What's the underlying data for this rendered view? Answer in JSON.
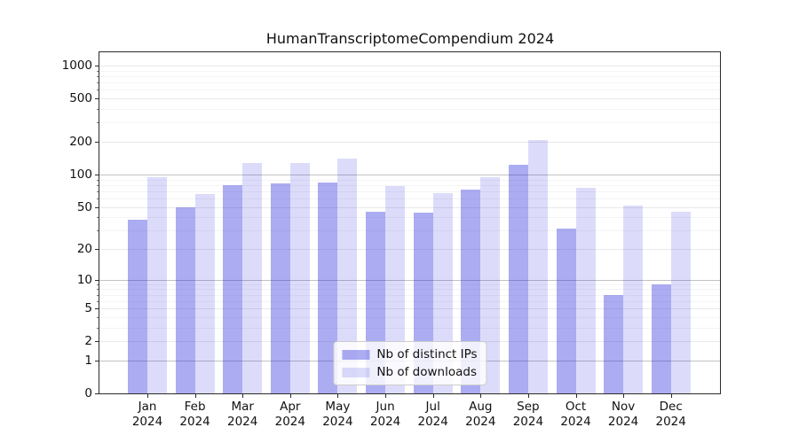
{
  "chart_data": {
    "type": "bar",
    "title": "HumanTranscriptomeCompendium 2024",
    "categories": [
      "Jan",
      "Feb",
      "Mar",
      "Apr",
      "May",
      "Jun",
      "Jul",
      "Aug",
      "Sep",
      "Oct",
      "Nov",
      "Dec"
    ],
    "x_year": "2024",
    "series": [
      {
        "name": "Nb of distinct IPs",
        "color": "#1e1edc",
        "alpha": 0.37,
        "values": [
          38,
          50,
          79,
          83,
          84,
          45,
          44,
          72,
          122,
          31,
          7,
          9
        ]
      },
      {
        "name": "Nb of downloads",
        "color": "#1e1edc",
        "alpha": 0.155,
        "values": [
          94,
          66,
          127,
          128,
          140,
          78,
          67,
          94,
          207,
          75,
          51,
          45
        ]
      }
    ],
    "yscale": "log1p",
    "ylim": [
      0,
      1350
    ],
    "yticks": [
      0,
      1,
      2,
      5,
      10,
      20,
      50,
      100,
      200,
      500,
      1000
    ],
    "ytick_labels": [
      "0",
      "1",
      "2",
      "5",
      "10",
      "20",
      "50",
      "100",
      "200",
      "500",
      "1000"
    ],
    "minor_yticks": [
      3,
      4,
      6,
      7,
      8,
      9,
      30,
      40,
      60,
      70,
      80,
      90,
      300,
      400,
      600,
      700,
      800,
      900
    ],
    "major_gridlines": [
      1,
      10,
      100
    ],
    "grid": true,
    "legend": {
      "position": "lower center"
    }
  },
  "colors": {
    "background": "#ffffff",
    "spine": "#2b2b2b",
    "grid_major": "#c2c2c2",
    "grid_regular": "#e9e9e9",
    "grid_minor": "#f4f4f4",
    "text": "#111111"
  }
}
